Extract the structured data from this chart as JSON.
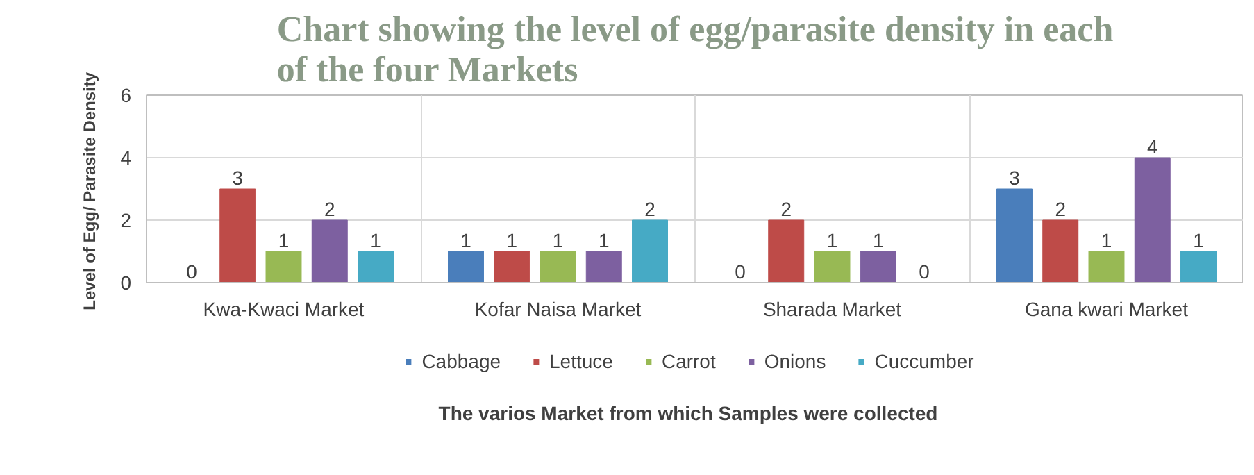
{
  "chart_data": {
    "type": "bar",
    "title": "Chart showing the level of egg/parasite density in each\nof the four Markets",
    "xlabel": "The varios Market from which Samples were collected",
    "ylabel": "Level of  Egg/ Parasite Density",
    "categories": [
      "Kwa-Kwaci Market",
      "Kofar Naisa Market",
      "Sharada Market",
      "Gana kwari Market"
    ],
    "series": [
      {
        "name": "Cabbage",
        "color": "#4a7ebb",
        "values": [
          0,
          1,
          0,
          3
        ]
      },
      {
        "name": "Lettuce",
        "color": "#be4b48",
        "values": [
          3,
          1,
          2,
          2
        ]
      },
      {
        "name": "Carrot",
        "color": "#98b954",
        "values": [
          1,
          1,
          1,
          1
        ]
      },
      {
        "name": "Onions",
        "color": "#7d60a0",
        "values": [
          2,
          1,
          1,
          4
        ]
      },
      {
        "name": "Cuccumber",
        "color": "#46aac5",
        "values": [
          1,
          2,
          0,
          1
        ]
      }
    ],
    "ylim": [
      0,
      6
    ],
    "yticks": [
      0,
      2,
      4,
      6
    ],
    "grid": true,
    "legend": "bottom",
    "data_labels": true
  }
}
